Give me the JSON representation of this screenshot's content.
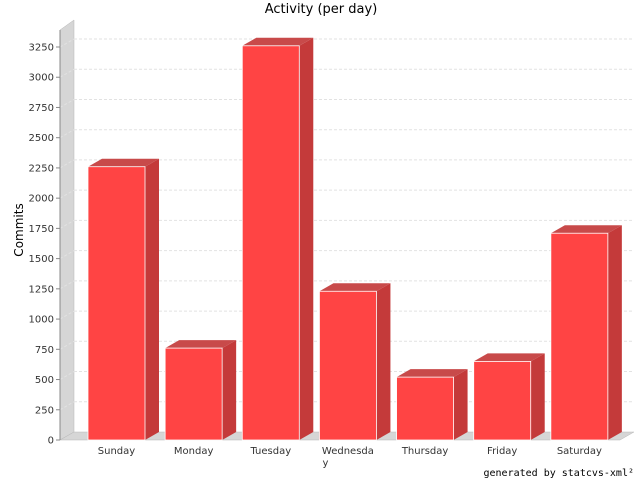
{
  "chart_data": {
    "type": "bar",
    "title": "Activity (per day)",
    "xlabel": "",
    "ylabel": "Commits",
    "categories": [
      "Sunday",
      "Monday",
      "Tuesday",
      "Wednesda\ny",
      "Thursday",
      "Friday",
      "Saturday"
    ],
    "values": [
      2260,
      760,
      3260,
      1230,
      520,
      650,
      1710
    ],
    "ylim": [
      0,
      3250
    ],
    "y_ticks": [
      0,
      250,
      500,
      750,
      1000,
      1250,
      1500,
      1750,
      2000,
      2250,
      2500,
      2750,
      3000,
      3250
    ],
    "grid": true,
    "bar_color": "#ff4444",
    "bar_side_color": "#c43a3a",
    "bar_top_color": "#c84a4a",
    "wall_color": "#d6d6d6"
  },
  "footer": {
    "text": "generated by statcvs-xml²"
  }
}
